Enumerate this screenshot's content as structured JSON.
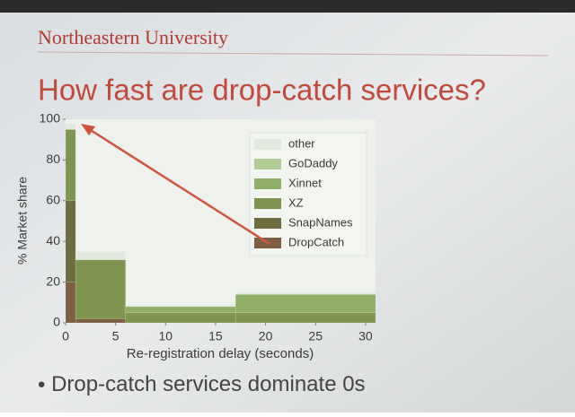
{
  "slide": {
    "institution": "Northeastern University",
    "bullet": "Drop-catch services dominate 0s"
  },
  "chart_data": {
    "type": "histogram",
    "title": "How fast are drop-catch services?",
    "x_label": "Re-registration delay (seconds)",
    "y_label": "% Market share",
    "bins": [
      0,
      1,
      6,
      17,
      31
    ],
    "series": [
      {
        "name": "DropCatch",
        "color": "#7d5e42",
        "values": [
          20,
          2,
          0,
          0
        ]
      },
      {
        "name": "SnapNames",
        "color": "#6d6c3e",
        "values": [
          40,
          0,
          0,
          0
        ]
      },
      {
        "name": "XZ",
        "color": "#7f9450",
        "values": [
          35,
          29,
          5,
          5
        ]
      },
      {
        "name": "Xinnet",
        "color": "#8fae68",
        "values": [
          0,
          0,
          3,
          9
        ]
      },
      {
        "name": "GoDaddy",
        "color": "#b1cc95",
        "values": [
          0,
          0,
          0,
          0
        ]
      },
      {
        "name": "other",
        "color": "#e3e9df",
        "values": [
          3,
          4,
          1,
          1
        ]
      }
    ],
    "xlim": [
      0,
      31
    ],
    "ylim": [
      0,
      100
    ],
    "xticks": [
      0,
      5,
      10,
      15,
      20,
      25,
      30
    ],
    "yticks": [
      0,
      20,
      40,
      60,
      80,
      100
    ]
  }
}
